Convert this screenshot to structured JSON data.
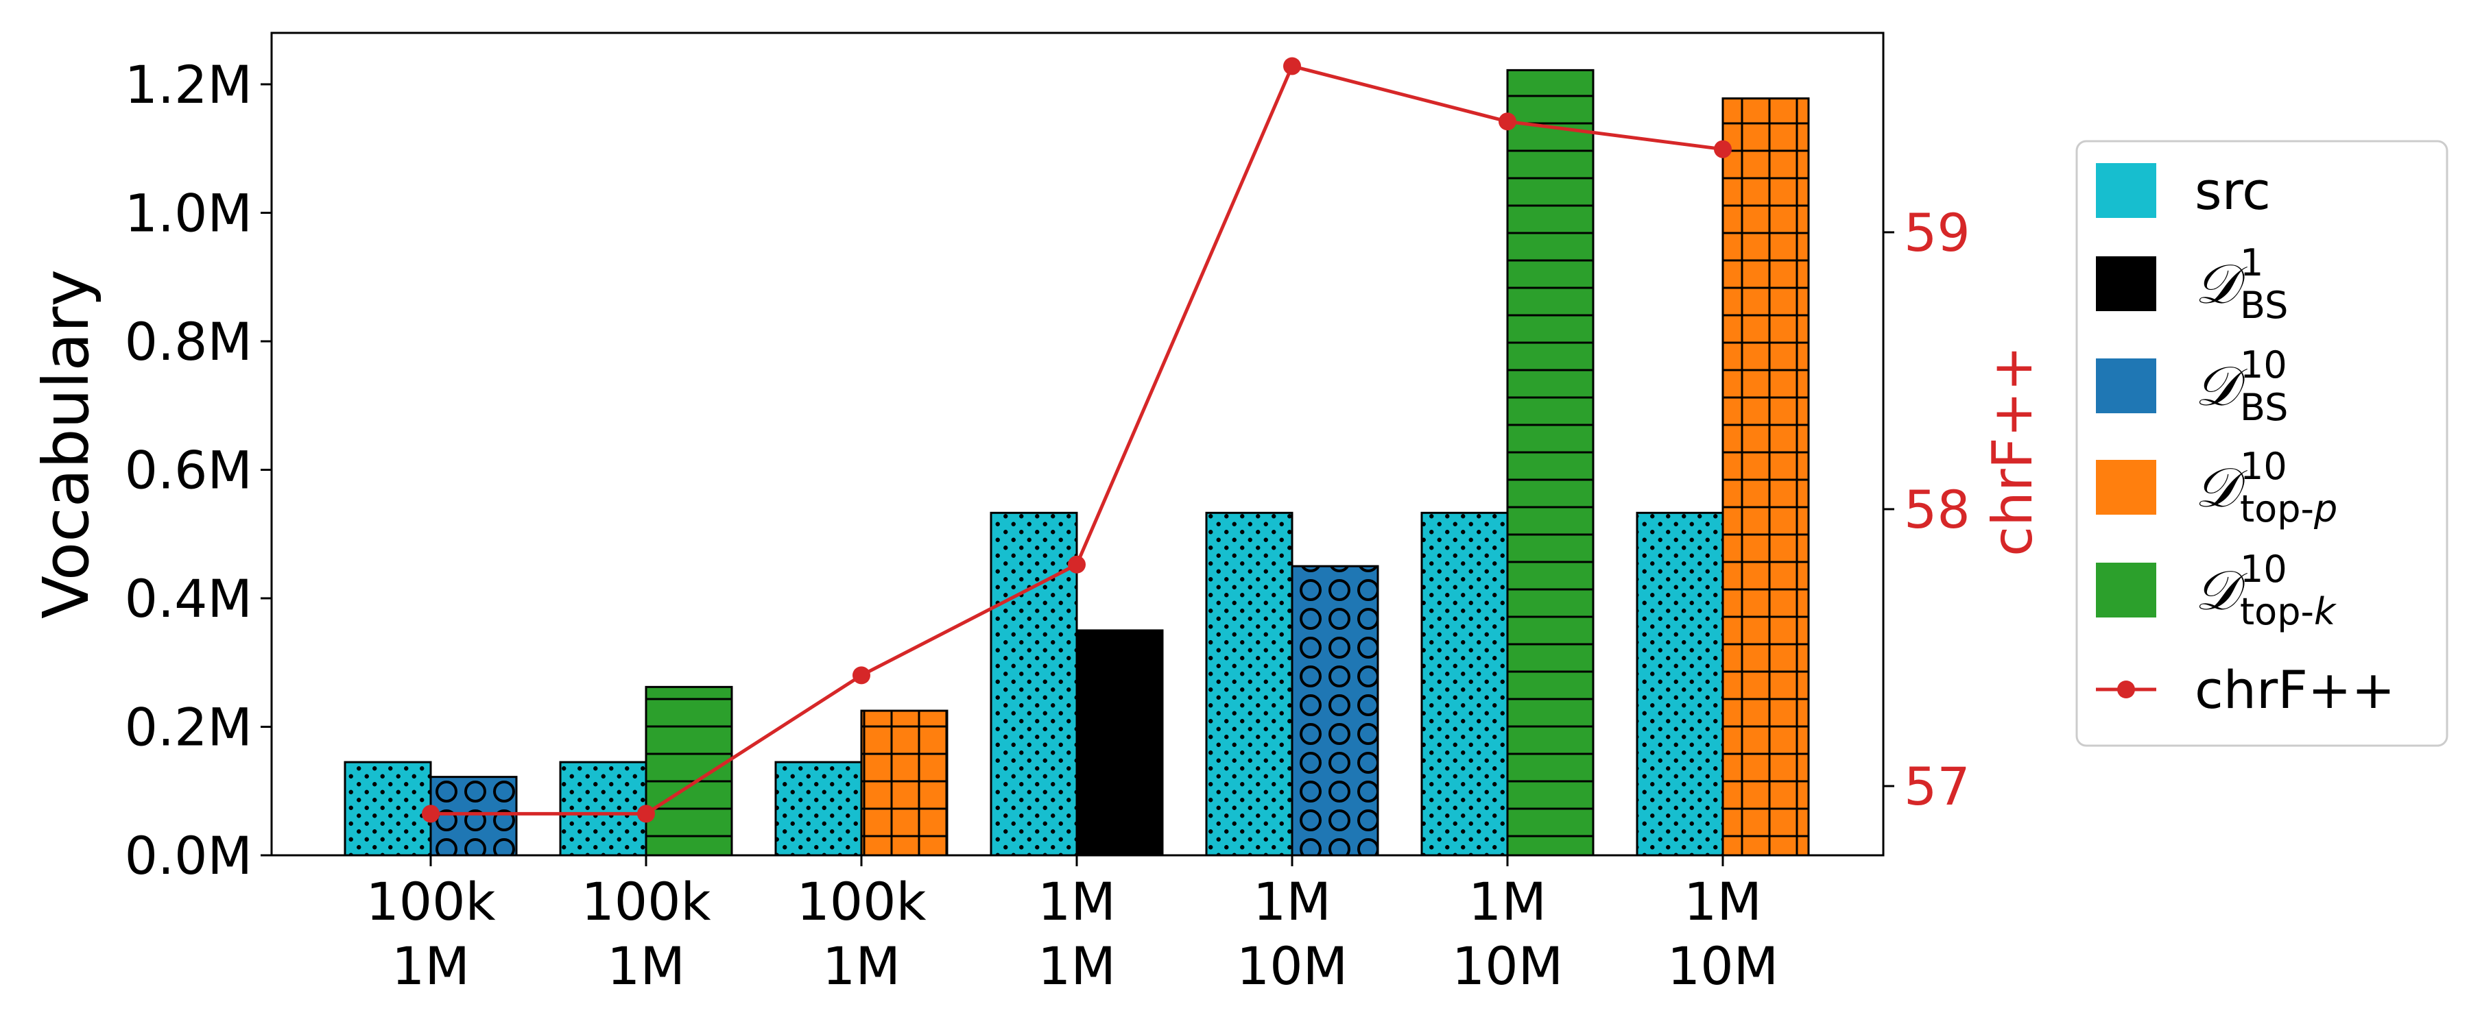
{
  "chart_data": {
    "type": "bar",
    "title": "",
    "xlabel": "",
    "ylabel": "Vocabulary",
    "y2label": "chrF++",
    "ylim": [
      0,
      1280000
    ],
    "y2lim": [
      56.75,
      59.72
    ],
    "y_ticks": [
      0,
      200000,
      400000,
      600000,
      800000,
      1000000,
      1200000
    ],
    "y_tick_labels": [
      "0.0M",
      "0.2M",
      "0.4M",
      "0.6M",
      "0.8M",
      "1.0M",
      "1.2M"
    ],
    "y2_ticks": [
      57,
      58,
      59
    ],
    "y2_tick_labels": [
      "57",
      "58",
      "59"
    ],
    "groups": [
      {
        "label1": "100k",
        "label2": "1M",
        "src": 145000,
        "second_series": "bs10",
        "second": 122000
      },
      {
        "label1": "100k",
        "label2": "1M",
        "src": 145000,
        "second_series": "topk10",
        "second": 262000
      },
      {
        "label1": "100k",
        "label2": "1M",
        "src": 145000,
        "second_series": "topp10",
        "second": 225000
      },
      {
        "label1": "1M",
        "label2": "1M",
        "src": 533000,
        "second_series": "bs1",
        "second": 350000
      },
      {
        "label1": "1M",
        "label2": "10M",
        "src": 533000,
        "second_series": "bs10",
        "second": 450000
      },
      {
        "label1": "1M",
        "label2": "10M",
        "src": 533000,
        "second_series": "topk10",
        "second": 1222000
      },
      {
        "label1": "1M",
        "label2": "10M",
        "src": 533000,
        "second_series": "topp10",
        "second": 1178000
      }
    ],
    "line": {
      "name": "chrF++",
      "values": [
        56.9,
        56.9,
        57.4,
        57.8,
        59.6,
        59.4,
        59.3
      ]
    },
    "series": [
      {
        "key": "src",
        "color": "#17becf",
        "pattern": "dots",
        "legend": {
          "base": "src"
        }
      },
      {
        "key": "bs1",
        "color": "#000000",
        "pattern": "none",
        "legend": {
          "base": "𝒟",
          "sup": "1",
          "sub": "BS"
        }
      },
      {
        "key": "bs10",
        "color": "#1f77b4",
        "pattern": "circles",
        "legend": {
          "base": "𝒟",
          "sup": "10",
          "sub": "BS"
        }
      },
      {
        "key": "topp10",
        "color": "#ff7f0e",
        "pattern": "grid",
        "legend": {
          "base": "𝒟",
          "sup": "10",
          "sub": "top-",
          "sub_italic": "p"
        }
      },
      {
        "key": "topk10",
        "color": "#2ca02c",
        "pattern": "hlines",
        "legend": {
          "base": "𝒟",
          "sup": "10",
          "sub": "top-",
          "sub_italic": "k"
        }
      }
    ],
    "line_color": "#d62728",
    "legend_position": "right"
  }
}
